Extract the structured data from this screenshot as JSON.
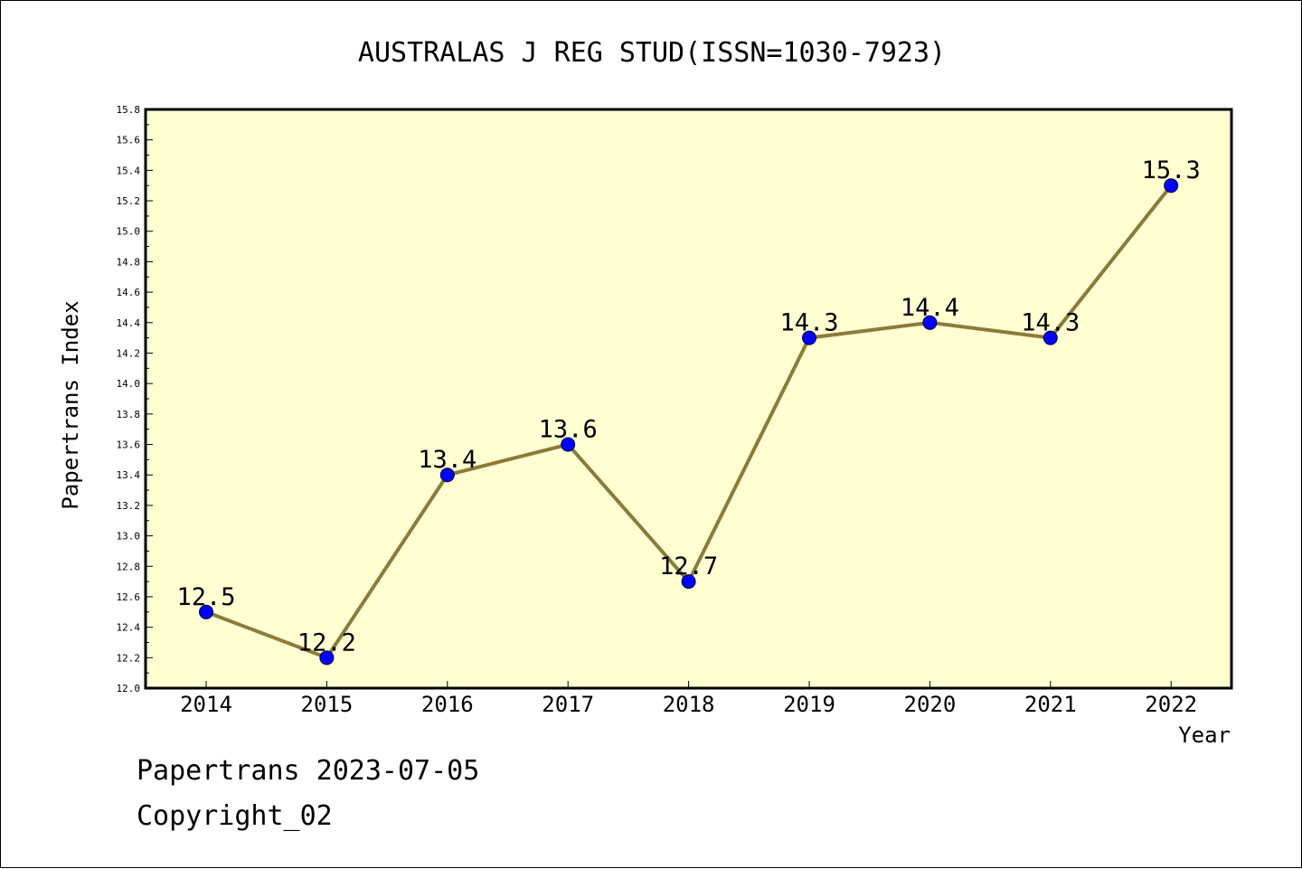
{
  "chart_data": {
    "type": "line",
    "title": "AUSTRALAS J REG STUD(ISSN=1030-7923)",
    "xlabel": "Year",
    "ylabel": "Papertrans Index",
    "categories": [
      "2014",
      "2015",
      "2016",
      "2017",
      "2018",
      "2019",
      "2020",
      "2021",
      "2022"
    ],
    "series": [
      {
        "values": [
          12.5,
          12.2,
          13.4,
          13.6,
          12.7,
          14.3,
          14.4,
          14.3,
          15.3
        ],
        "labels": [
          "12.5",
          "12.2",
          "13.4",
          "13.6",
          "12.7",
          "14.3",
          "14.4",
          "14.3",
          "15.3"
        ]
      }
    ],
    "ylim": [
      12.0,
      15.8
    ],
    "y_ticks": [
      "12.0",
      "12.2",
      "12.4",
      "12.6",
      "12.8",
      "13.0",
      "13.2",
      "13.4",
      "13.6",
      "13.8",
      "14.0",
      "14.2",
      "14.4",
      "14.6",
      "14.8",
      "15.0",
      "15.2",
      "15.4",
      "15.6",
      "15.8"
    ],
    "grid": false,
    "legend": "none",
    "colors": {
      "plot_background": "#ffffd2",
      "line": "#8b7b3a",
      "marker": "#0000ff",
      "axis": "#000000"
    }
  },
  "footer": {
    "source_line": "Papertrans 2023-07-05",
    "copyright_line": "Copyright_02"
  }
}
